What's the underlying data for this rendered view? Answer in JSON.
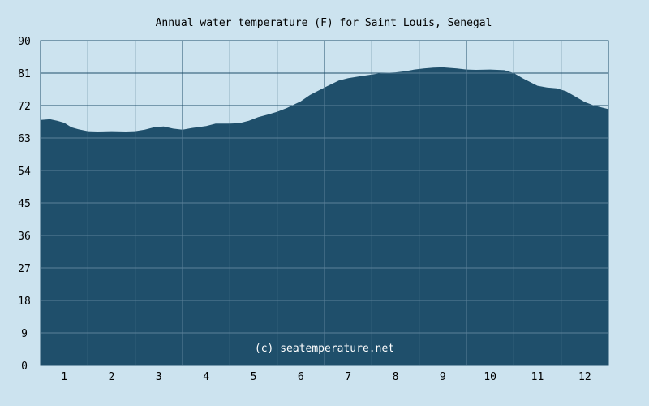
{
  "chart_data": {
    "type": "area",
    "title": "Annual water temperature (F) for Saint Louis, Senegal",
    "xlabel": "",
    "ylabel": "",
    "x_tick_labels": [
      "1",
      "2",
      "3",
      "4",
      "5",
      "6",
      "7",
      "8",
      "9",
      "10",
      "11",
      "12"
    ],
    "y_tick_labels": [
      "0",
      "9",
      "18",
      "27",
      "36",
      "45",
      "54",
      "63",
      "72",
      "81",
      "90"
    ],
    "xlim": [
      0.5,
      12.5
    ],
    "ylim": [
      0,
      90
    ],
    "grid": true,
    "legend": "none",
    "credit": "(c) seatemperature.net",
    "x": [
      0.5,
      0.7,
      0.85,
      1.0,
      1.15,
      1.3,
      1.5,
      1.7,
      2.0,
      2.3,
      2.5,
      2.7,
      2.9,
      3.1,
      3.3,
      3.5,
      3.7,
      4.0,
      4.2,
      4.5,
      4.7,
      4.9,
      5.1,
      5.3,
      5.5,
      5.7,
      6.0,
      6.2,
      6.5,
      6.8,
      7.0,
      7.2,
      7.5,
      7.7,
      8.0,
      8.2,
      8.4,
      8.6,
      8.8,
      9.0,
      9.3,
      9.5,
      9.7,
      10.0,
      10.3,
      10.5,
      10.7,
      11.0,
      11.2,
      11.4,
      11.6,
      11.8,
      12.0,
      12.2,
      12.5
    ],
    "values": [
      68.0,
      68.2,
      67.8,
      67.2,
      66.0,
      65.4,
      64.9,
      64.8,
      64.9,
      64.8,
      64.9,
      65.3,
      66.0,
      66.2,
      65.6,
      65.3,
      65.8,
      66.3,
      67.0,
      67.0,
      67.1,
      67.8,
      68.8,
      69.5,
      70.3,
      71.3,
      73.2,
      75.0,
      77.0,
      78.9,
      79.6,
      80.0,
      80.6,
      81.0,
      81.2,
      81.5,
      82.0,
      82.3,
      82.5,
      82.6,
      82.3,
      82.0,
      81.9,
      82.0,
      81.8,
      81.0,
      79.5,
      77.5,
      77.0,
      76.8,
      76.0,
      74.5,
      73.0,
      72.0,
      71.0
    ],
    "colors": {
      "background": "#cce3ef",
      "fill": "#1f4f6b",
      "grid_on_bg": "#1f4f6b",
      "grid_on_fill": "#5b8199"
    }
  }
}
